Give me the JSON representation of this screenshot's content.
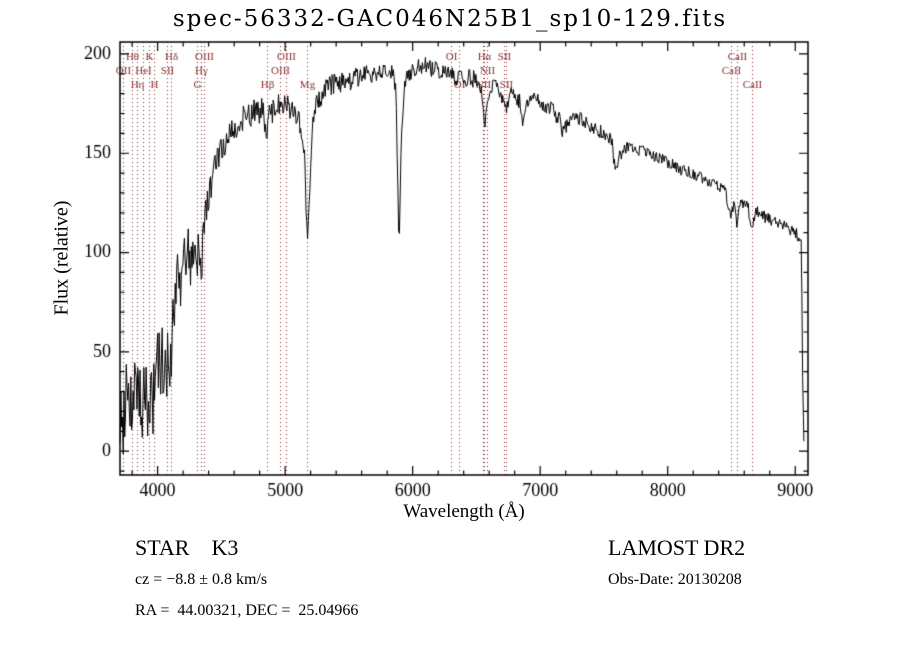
{
  "header": {
    "title": "spec-56332-GAC046N25B1_sp10-129.fits"
  },
  "axes": {
    "xlabel": "Wavelength (Å)",
    "ylabel": "Flux (relative)"
  },
  "footer": {
    "class_label": "STAR    K3",
    "survey": "LAMOST DR2",
    "cz": "cz = −8.8 ± 0.8 km/s",
    "obs_date": "Obs-Date: 20130208",
    "radec": "RA =  44.00321, DEC =  25.04966"
  },
  "chart_data": {
    "type": "line",
    "title": "spec-56332-GAC046N25B1_sp10-129.fits",
    "xlabel": "Wavelength (Å)",
    "ylabel": "Flux (relative)",
    "xlim": [
      3705,
      9100
    ],
    "ylim": [
      -12,
      206
    ],
    "xticks": [
      4000,
      5000,
      6000,
      7000,
      8000,
      9000
    ],
    "yticks": [
      0,
      50,
      100,
      150,
      200
    ],
    "xminor_step": 200,
    "yminor_step": 10,
    "line_color": "#000000",
    "frame_color": "#000000",
    "marker_color": "#8b3030",
    "sample_step": 6,
    "seed": 20130208,
    "noise_segments": [
      {
        "upto": 4110,
        "amp": 20
      },
      {
        "upto": 4400,
        "amp": 13
      },
      {
        "upto": 4900,
        "amp": 7
      },
      {
        "upto": 5600,
        "amp": 5.5
      },
      {
        "upto": 6500,
        "amp": 4.5
      },
      {
        "upto": 7600,
        "amp": 4
      },
      {
        "upto": 9100,
        "amp": 3
      }
    ],
    "envelope": [
      [
        3705,
        5
      ],
      [
        3720,
        25
      ],
      [
        3735,
        10
      ],
      [
        3750,
        35
      ],
      [
        3765,
        15
      ],
      [
        3780,
        30
      ],
      [
        3800,
        20
      ],
      [
        3820,
        35
      ],
      [
        3835,
        22
      ],
      [
        3850,
        40
      ],
      [
        3870,
        28
      ],
      [
        3889,
        20
      ],
      [
        3910,
        38
      ],
      [
        3933,
        15
      ],
      [
        3950,
        40
      ],
      [
        3968,
        22
      ],
      [
        3990,
        45
      ],
      [
        4010,
        40
      ],
      [
        4030,
        50
      ],
      [
        4050,
        45
      ],
      [
        4072,
        38
      ],
      [
        4090,
        55
      ],
      [
        4101,
        45
      ],
      [
        4120,
        65
      ],
      [
        4140,
        80
      ],
      [
        4160,
        95
      ],
      [
        4180,
        85
      ],
      [
        4200,
        100
      ],
      [
        4220,
        95
      ],
      [
        4240,
        105
      ],
      [
        4260,
        95
      ],
      [
        4280,
        100
      ],
      [
        4305,
        90
      ],
      [
        4320,
        100
      ],
      [
        4340,
        98
      ],
      [
        4363,
        105
      ],
      [
        4380,
        120
      ],
      [
        4400,
        128
      ],
      [
        4430,
        138
      ],
      [
        4460,
        145
      ],
      [
        4490,
        150
      ],
      [
        4520,
        155
      ],
      [
        4560,
        160
      ],
      [
        4600,
        163
      ],
      [
        4640,
        166
      ],
      [
        4680,
        168
      ],
      [
        4720,
        170
      ],
      [
        4760,
        171
      ],
      [
        4800,
        172
      ],
      [
        4830,
        170
      ],
      [
        4861,
        160
      ],
      [
        4880,
        170
      ],
      [
        4910,
        173
      ],
      [
        4940,
        174
      ],
      [
        4970,
        175
      ],
      [
        5000,
        176
      ],
      [
        5030,
        174
      ],
      [
        5060,
        170
      ],
      [
        5090,
        168
      ],
      [
        5120,
        165
      ],
      [
        5150,
        150
      ],
      [
        5172,
        110
      ],
      [
        5185,
        118
      ],
      [
        5200,
        145
      ],
      [
        5220,
        165
      ],
      [
        5250,
        175
      ],
      [
        5280,
        179
      ],
      [
        5320,
        182
      ],
      [
        5360,
        184
      ],
      [
        5400,
        185
      ],
      [
        5450,
        186
      ],
      [
        5500,
        187
      ],
      [
        5550,
        188
      ],
      [
        5600,
        189
      ],
      [
        5650,
        190
      ],
      [
        5700,
        190
      ],
      [
        5750,
        191
      ],
      [
        5800,
        191
      ],
      [
        5840,
        190
      ],
      [
        5870,
        182
      ],
      [
        5892,
        100
      ],
      [
        5910,
        155
      ],
      [
        5930,
        180
      ],
      [
        5960,
        189
      ],
      [
        6000,
        192
      ],
      [
        6050,
        193
      ],
      [
        6100,
        194
      ],
      [
        6150,
        193
      ],
      [
        6200,
        192
      ],
      [
        6250,
        191
      ],
      [
        6300,
        189
      ],
      [
        6330,
        189
      ],
      [
        6364,
        187
      ],
      [
        6400,
        188
      ],
      [
        6450,
        188
      ],
      [
        6500,
        187
      ],
      [
        6540,
        183
      ],
      [
        6563,
        160
      ],
      [
        6585,
        180
      ],
      [
        6620,
        183
      ],
      [
        6660,
        183
      ],
      [
        6700,
        179
      ],
      [
        6717,
        174
      ],
      [
        6731,
        172
      ],
      [
        6760,
        179
      ],
      [
        6800,
        180
      ],
      [
        6840,
        176
      ],
      [
        6868,
        164
      ],
      [
        6890,
        172
      ],
      [
        6930,
        177
      ],
      [
        6970,
        176
      ],
      [
        7000,
        176
      ],
      [
        7050,
        174
      ],
      [
        7100,
        172
      ],
      [
        7150,
        167
      ],
      [
        7185,
        160
      ],
      [
        7220,
        166
      ],
      [
        7270,
        168
      ],
      [
        7320,
        167
      ],
      [
        7370,
        165
      ],
      [
        7420,
        163
      ],
      [
        7470,
        161
      ],
      [
        7520,
        159
      ],
      [
        7560,
        156
      ],
      [
        7594,
        140
      ],
      [
        7620,
        148
      ],
      [
        7660,
        153
      ],
      [
        7700,
        153
      ],
      [
        7750,
        152
      ],
      [
        7800,
        151
      ],
      [
        7850,
        150
      ],
      [
        7900,
        148
      ],
      [
        7950,
        147
      ],
      [
        8000,
        145
      ],
      [
        8050,
        144
      ],
      [
        8100,
        142
      ],
      [
        8150,
        141
      ],
      [
        8200,
        139
      ],
      [
        8250,
        138
      ],
      [
        8300,
        136
      ],
      [
        8350,
        135
      ],
      [
        8400,
        133
      ],
      [
        8450,
        131
      ],
      [
        8498,
        116
      ],
      [
        8520,
        127
      ],
      [
        8542,
        113
      ],
      [
        8565,
        125
      ],
      [
        8600,
        124
      ],
      [
        8630,
        123
      ],
      [
        8662,
        111
      ],
      [
        8690,
        121
      ],
      [
        8720,
        120
      ],
      [
        8760,
        118
      ],
      [
        8800,
        117
      ],
      [
        8840,
        115
      ],
      [
        8880,
        114
      ],
      [
        8920,
        113
      ],
      [
        8960,
        111
      ],
      [
        9000,
        110
      ],
      [
        9030,
        108
      ],
      [
        9048,
        105
      ],
      [
        9058,
        40
      ],
      [
        9068,
        5
      ]
    ],
    "spectral_line_markers": [
      {
        "label": "OII",
        "wavelength": 3727,
        "row": 2
      },
      {
        "label": "Hθ",
        "wavelength": 3798,
        "row": 1
      },
      {
        "label": "Hη",
        "wavelength": 3835,
        "row": 3
      },
      {
        "label": "HeI",
        "wavelength": 3889,
        "row": 2
      },
      {
        "label": "K",
        "wavelength": 3933,
        "row": 1
      },
      {
        "label": "H",
        "wavelength": 3968,
        "row": 3
      },
      {
        "label": "SII",
        "wavelength": 4072,
        "row": 2
      },
      {
        "label": "Hδ",
        "wavelength": 4101,
        "row": 1
      },
      {
        "label": "G",
        "wavelength": 4305,
        "row": 3
      },
      {
        "label": "Hγ",
        "wavelength": 4340,
        "row": 2
      },
      {
        "label": "OIII",
        "wavelength": 4363,
        "row": 1
      },
      {
        "label": "Hβ",
        "wavelength": 4861,
        "row": 3
      },
      {
        "label": "OIII",
        "wavelength": 4959,
        "row": 2
      },
      {
        "label": "OIII",
        "wavelength": 5007,
        "row": 1
      },
      {
        "label": "Mg",
        "wavelength": 5175,
        "row": 3
      },
      {
        "label": "OI",
        "wavelength": 6300,
        "row": 1
      },
      {
        "label": "OI",
        "wavelength": 6364,
        "row": 3
      },
      {
        "label": "NII",
        "wavelength": 6548,
        "row": 3
      },
      {
        "label": "Hα",
        "wavelength": 6563,
        "row": 1
      },
      {
        "label": "NII",
        "wavelength": 6583,
        "row": 2
      },
      {
        "label": "SII",
        "wavelength": 6716,
        "row": 1
      },
      {
        "label": "SII",
        "wavelength": 6731,
        "row": 3
      },
      {
        "label": "CaII",
        "wavelength": 8498,
        "row": 2
      },
      {
        "label": "CaII",
        "wavelength": 8542,
        "row": 1
      },
      {
        "label": "CaII",
        "wavelength": 8662,
        "row": 3
      }
    ]
  }
}
